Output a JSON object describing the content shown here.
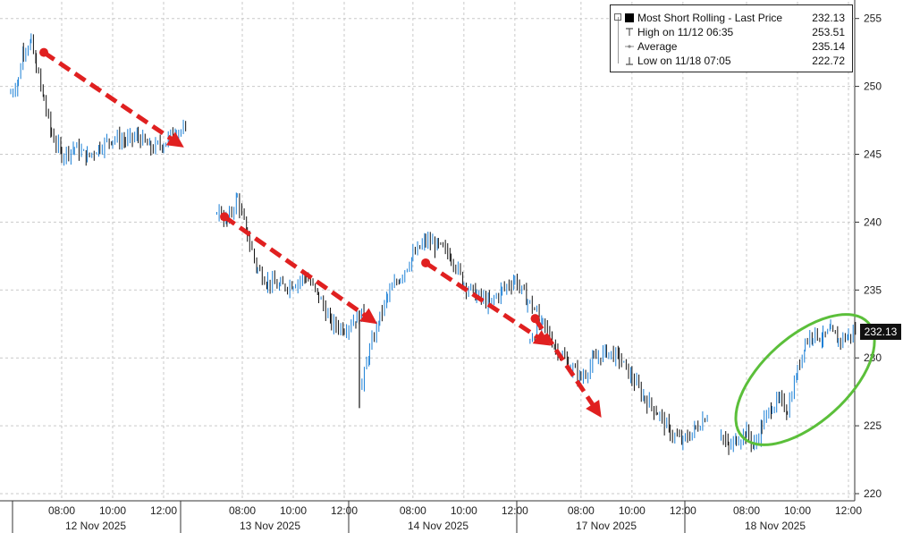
{
  "chart_data": {
    "type": "candlestick",
    "title": "",
    "ylim": [
      219.5,
      256
    ],
    "y_ticks": [
      220,
      225,
      230,
      235,
      240,
      245,
      250,
      255
    ],
    "x_time_labels": [
      "08:00",
      "10:00",
      "12:00",
      "08:00",
      "10:00",
      "12:00",
      "08:00",
      "10:00",
      "12:00",
      "08:00",
      "10:00",
      "12:00",
      "08:00",
      "10:00",
      "12:00"
    ],
    "day_labels": [
      "12 Nov 2025",
      "13 Nov 2025",
      "14 Nov 2025",
      "17 Nov 2025",
      "18 Nov 2025"
    ],
    "days": [
      {
        "date": "12 Nov 2025",
        "points": [
          [
            6.0,
            249.5
          ],
          [
            6.3,
            250.5
          ],
          [
            6.5,
            252.8
          ],
          [
            6.8,
            253.2
          ],
          [
            7.0,
            251.5
          ],
          [
            7.3,
            249.0
          ],
          [
            7.6,
            246.5
          ],
          [
            8.0,
            245.0
          ],
          [
            8.5,
            245.5
          ],
          [
            9.0,
            244.8
          ],
          [
            9.5,
            245.6
          ],
          [
            10.0,
            246.2
          ],
          [
            10.5,
            246.0
          ],
          [
            11.0,
            246.3
          ],
          [
            11.5,
            245.4
          ],
          [
            12.0,
            245.8
          ],
          [
            12.5,
            246.9
          ],
          [
            12.9,
            246.5
          ]
        ]
      },
      {
        "date": "13 Nov 2025",
        "points": [
          [
            7.0,
            241.0
          ],
          [
            7.4,
            240.0
          ],
          [
            7.8,
            241.8
          ],
          [
            8.2,
            239.0
          ],
          [
            8.6,
            236.5
          ],
          [
            9.0,
            235.6
          ],
          [
            9.5,
            235.2
          ],
          [
            10.0,
            235.5
          ],
          [
            10.5,
            236.0
          ],
          [
            11.0,
            234.5
          ],
          [
            11.5,
            232.5
          ],
          [
            12.0,
            232.2
          ],
          [
            12.5,
            233.0
          ],
          [
            13.0,
            233.5
          ]
        ]
      },
      {
        "date": "14 Nov 2025",
        "points": [
          [
            6.0,
            228.0
          ],
          [
            6.3,
            230.5
          ],
          [
            6.7,
            233.0
          ],
          [
            7.0,
            234.5
          ],
          [
            7.5,
            236.0
          ],
          [
            8.0,
            237.5
          ],
          [
            8.5,
            238.6
          ],
          [
            9.0,
            238.2
          ],
          [
            9.5,
            237.5
          ],
          [
            10.0,
            235.5
          ],
          [
            10.5,
            234.6
          ],
          [
            11.0,
            234.0
          ],
          [
            11.5,
            235.0
          ],
          [
            12.0,
            235.8
          ],
          [
            12.5,
            234.2
          ],
          [
            13.0,
            233.0
          ]
        ]
      },
      {
        "date": "17 Nov 2025",
        "points": [
          [
            6.0,
            231.5
          ],
          [
            6.5,
            232.5
          ],
          [
            7.0,
            230.8
          ],
          [
            7.5,
            229.5
          ],
          [
            8.0,
            228.5
          ],
          [
            8.5,
            229.8
          ],
          [
            9.0,
            230.5
          ],
          [
            9.5,
            230.0
          ],
          [
            10.0,
            228.5
          ],
          [
            10.5,
            227.0
          ],
          [
            11.0,
            226.0
          ],
          [
            11.5,
            224.5
          ],
          [
            12.0,
            223.8
          ],
          [
            12.5,
            224.8
          ],
          [
            13.0,
            226.0
          ]
        ]
      },
      {
        "date": "18 Nov 2025",
        "points": [
          [
            7.0,
            224.5
          ],
          [
            7.3,
            223.3
          ],
          [
            7.6,
            224.0
          ],
          [
            8.0,
            224.5
          ],
          [
            8.3,
            223.5
          ],
          [
            8.6,
            225.0
          ],
          [
            9.0,
            226.5
          ],
          [
            9.3,
            226.8
          ],
          [
            9.6,
            226.2
          ],
          [
            10.0,
            229.0
          ],
          [
            10.3,
            231.2
          ],
          [
            10.6,
            231.8
          ],
          [
            11.0,
            231.5
          ],
          [
            11.3,
            231.9
          ],
          [
            11.6,
            231.3
          ],
          [
            12.0,
            231.6
          ],
          [
            12.3,
            232.1
          ]
        ]
      }
    ],
    "legend": {
      "entries": [
        {
          "label": "Most Short Rolling - Last Price",
          "value": "232.13",
          "icon": "filled-square"
        },
        {
          "label": "High on 11/12 06:35",
          "value": "253.51",
          "icon": "high-marker-icon"
        },
        {
          "label": "Average",
          "value": "235.14",
          "icon": "average-line-icon"
        },
        {
          "label": "Low on 11/18 07:05",
          "value": "222.72",
          "icon": "low-marker-icon"
        }
      ],
      "placement": "top-right"
    },
    "last_price_tag": "232.13",
    "annotations": {
      "arrows": [
        {
          "from": [
            7.3,
            252.5
          ],
          "to": [
            12.8,
            245.5
          ],
          "day": 0
        },
        {
          "from": [
            7.3,
            240.4
          ],
          "to": [
            13.3,
            232.5
          ],
          "day": 1
        },
        {
          "from": [
            8.5,
            237.0
          ],
          "to": [
            13.4,
            230.9
          ],
          "day": 2
        },
        {
          "from": [
            6.2,
            232.9
          ],
          "to": [
            8.8,
            225.6
          ],
          "day": 3
        }
      ],
      "ellipse": {
        "day": 4,
        "center": [
          10.3,
          228.4
        ],
        "note": "green highlight around recovery"
      }
    },
    "colors": {
      "up_line": "#1a7fd6",
      "down_line": "#111111",
      "grid": "#c9c9c9",
      "arrow": "#e02020",
      "ellipse": "#5bbf3a",
      "legend_border": "#222222"
    },
    "grid": true
  }
}
